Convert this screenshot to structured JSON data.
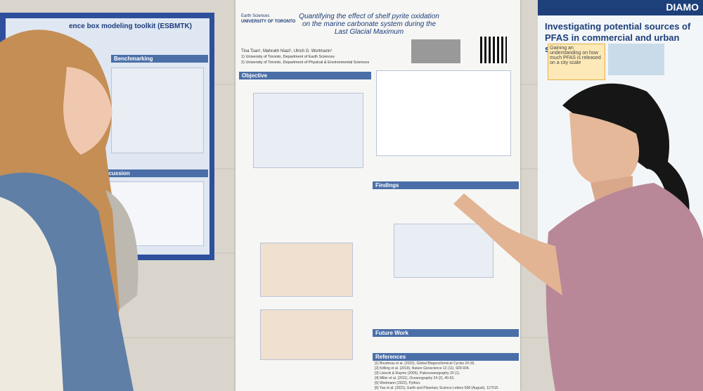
{
  "left_poster": {
    "title": "ence box modeling toolkit (ESBMTK)",
    "sections": [
      "Benchmarking",
      "Discussion"
    ]
  },
  "center_poster": {
    "institution": [
      "Earth Sciences",
      "UNIVERSITY OF TORONTO"
    ],
    "title": "Quantifying the effect of shelf pyrite oxidation on the marine carbonate system during the Last Glacial Maximum",
    "authors": "Tina Tsan¹, Mahrukh Niazi¹, Ulrich G. Wortmann¹",
    "affiliations": [
      "1) University of Toronto, Department of Earth Sciences",
      "2) University of Toronto, Department of Physical & Environmental Sciences"
    ],
    "sections": {
      "objective": "Objective",
      "findings": "Findings",
      "future_work": "Future Work",
      "references": "References"
    },
    "references": [
      "[1] Boudreau et al. (2010), Global Biogeochemical Cycles 24 (4).",
      "[2] Kölling et al. (2019), Nature Geoscience 12 (11), 929-934.",
      "[3] Lisiecki & Raymo (2005), Paleoceanography 20 (1).",
      "[4] Miller et al. (2011), Oceanography 24 (2), 40-53.",
      "[5] Wortmann (2022), Python.",
      "[6] Yao et al. (2021), Earth and Planetary Science Letters 568 (August), 117015."
    ]
  },
  "right_poster": {
    "banner": "DIAMO",
    "title": "Investigating potential sources of PFAS in commercial and urban settings",
    "callout": "Gaining an understanding on how much PFAS is released on a city scale"
  }
}
